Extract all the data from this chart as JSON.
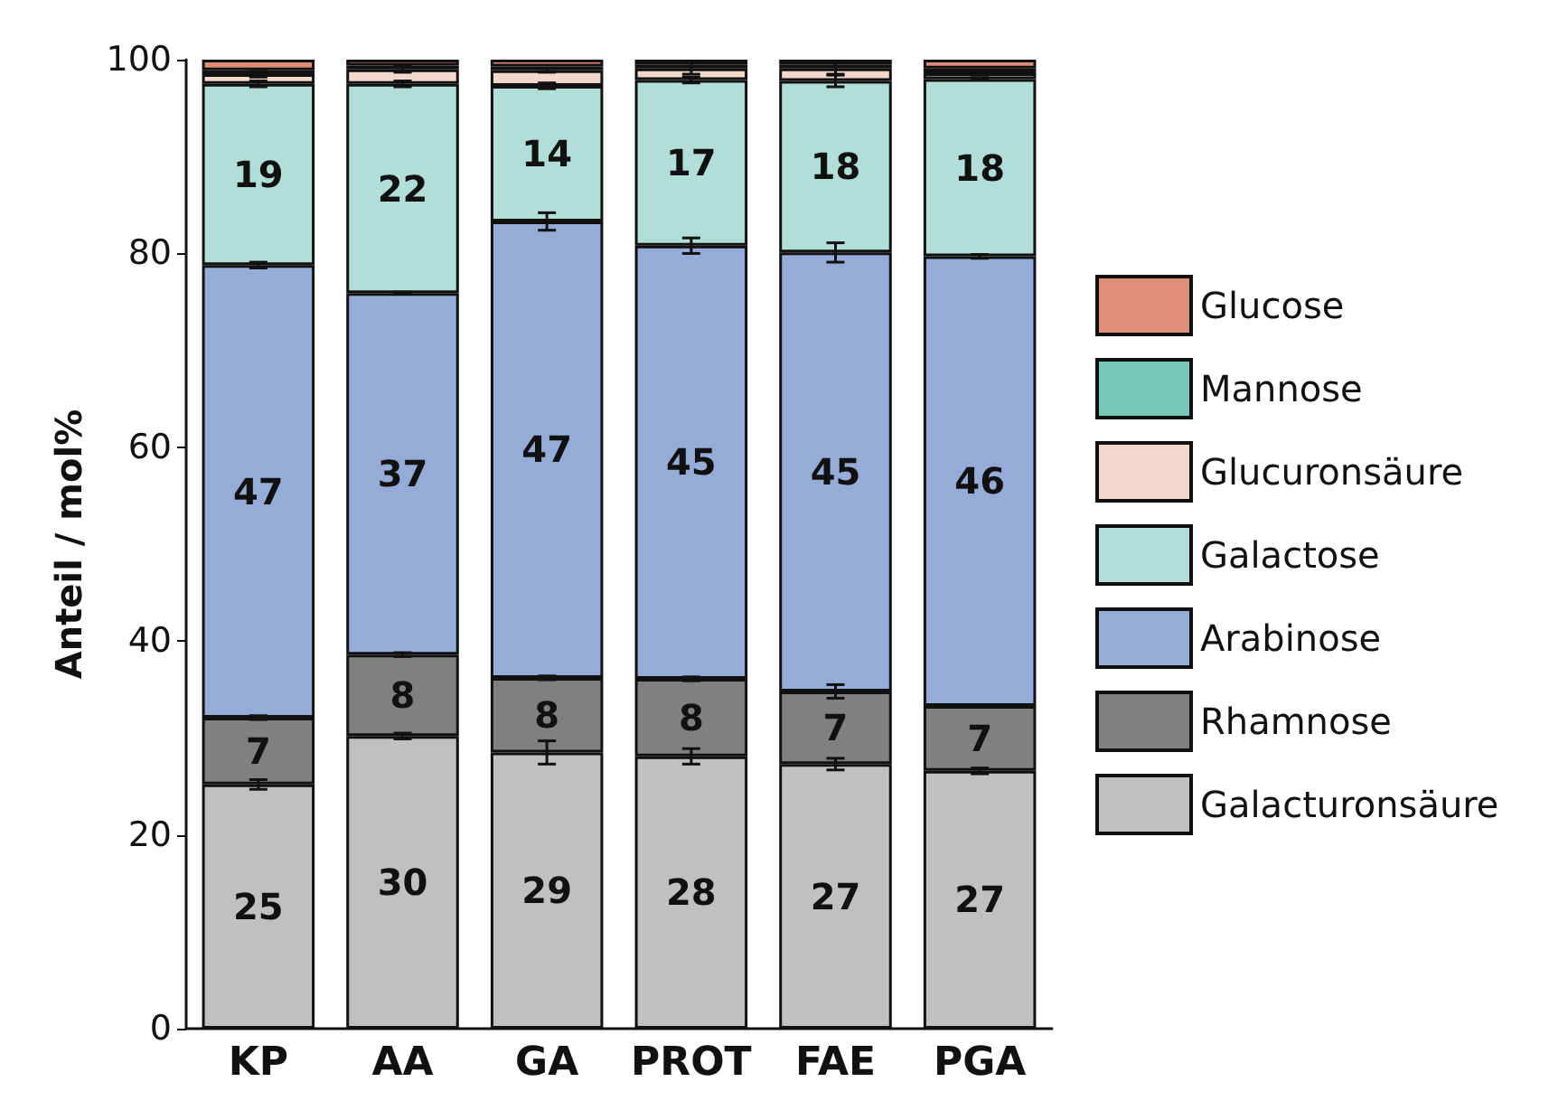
{
  "chart_data": {
    "type": "bar",
    "stacked": true,
    "ylabel": "Anteil / mol%",
    "categories": [
      "KP",
      "AA",
      "GA",
      "PROT",
      "FAE",
      "PGA"
    ],
    "ylim": [
      0,
      100
    ],
    "yticks": [
      0,
      20,
      40,
      60,
      80,
      100
    ],
    "grid": false,
    "legend": "right",
    "series": [
      {
        "name": "Galacturonsäure",
        "color": "#c0c0c0",
        "values": [
          25.2,
          30.2,
          28.5,
          28.1,
          27.3,
          26.6
        ],
        "errors": [
          0.5,
          0.3,
          1.2,
          0.8,
          0.6,
          0.3
        ],
        "value_labels": [
          "25",
          "30",
          "29",
          "28",
          "27",
          "27"
        ]
      },
      {
        "name": "Rhamnose",
        "color": "#808080",
        "values": [
          6.9,
          8.4,
          7.7,
          8.0,
          7.5,
          6.7
        ],
        "errors": [
          0.2,
          0.2,
          0.2,
          0.2,
          0.7,
          0.1
        ],
        "value_labels": [
          "7",
          "8",
          "8",
          "8",
          "7",
          "7"
        ]
      },
      {
        "name": "Arabinose",
        "color": "#95acd8",
        "values": [
          46.7,
          37.3,
          47.1,
          44.7,
          45.3,
          46.4
        ],
        "errors": [
          0.3,
          0.1,
          0.9,
          0.8,
          1.0,
          0.2
        ],
        "value_labels": [
          "47",
          "37",
          "47",
          "45",
          "45",
          "46"
        ]
      },
      {
        "name": "Galactose",
        "color": "#b1ded6",
        "values": [
          18.7,
          21.6,
          14.0,
          17.1,
          17.7,
          18.3
        ],
        "errors": [
          0.3,
          0.3,
          0.3,
          0.3,
          0.6,
          0.1
        ],
        "value_labels": [
          "19",
          "22",
          "14",
          "17",
          "18",
          "18"
        ]
      },
      {
        "name": "Glucuronsäure",
        "color": "#f2d8cc",
        "values": [
          1.0,
          1.5,
          1.6,
          1.2,
          1.3,
          0.6
        ],
        "errors": [
          0.3,
          0.3,
          0.2,
          0.6,
          0.6,
          0.2
        ]
      },
      {
        "name": "Mannose",
        "color": "#76c8b8",
        "values": [
          0.4,
          0.4,
          0.4,
          0.4,
          0.4,
          0.5
        ]
      },
      {
        "name": "Glucose",
        "color": "#dd8e74",
        "values": [
          1.1,
          0.6,
          0.7,
          0.5,
          0.5,
          0.9
        ]
      }
    ]
  }
}
